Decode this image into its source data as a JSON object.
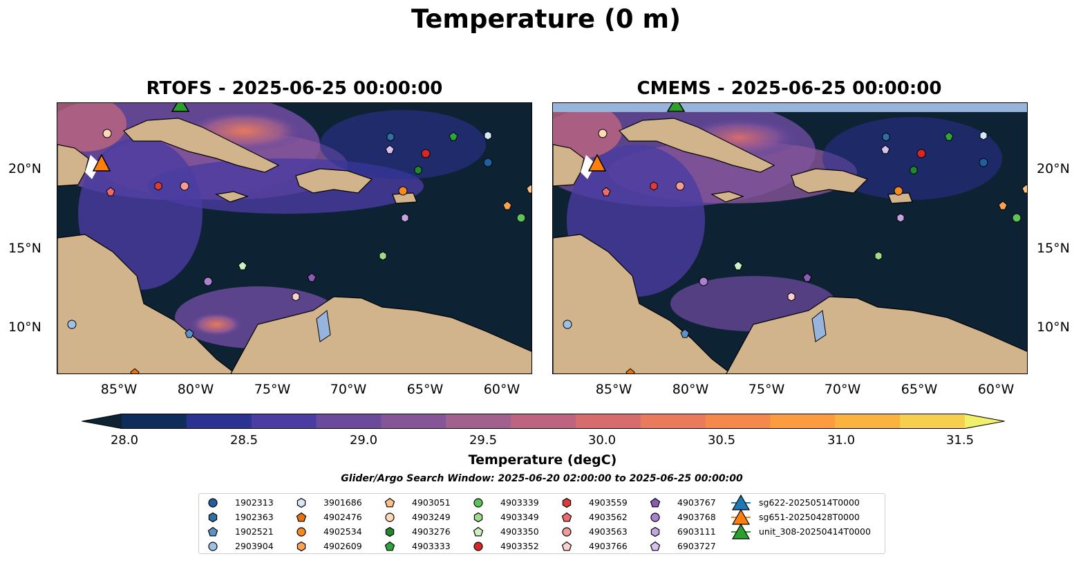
{
  "title": "Temperature (0 m)",
  "panels": [
    {
      "title": "RTOFS - 2025-06-25 00:00:00"
    },
    {
      "title": "CMEMS - 2025-06-25 00:00:00"
    }
  ],
  "axes": {
    "lon_labels": [
      "85°W",
      "80°W",
      "75°W",
      "70°W",
      "65°W",
      "60°W"
    ],
    "lat_labels": [
      "20°N",
      "15°N",
      "10°N"
    ]
  },
  "colorbar": {
    "label": "Temperature (degC)",
    "ticks": [
      "28.0",
      "28.5",
      "29.0",
      "29.5",
      "30.0",
      "30.5",
      "31.0",
      "31.5"
    ],
    "range": [
      28.0,
      31.5
    ],
    "extend": "both",
    "colors": [
      "#0d2233",
      "#0f2d5a",
      "#2b3291",
      "#4a3ca1",
      "#6b4a9c",
      "#865598",
      "#a2608e",
      "#bd6580",
      "#d66c6e",
      "#e97a5b",
      "#f5894b",
      "#fa9c3f",
      "#fbb33f",
      "#f7cf4e",
      "#f0f06a"
    ]
  },
  "search_window": "Glider/Argo Search Window: 2025-06-20 02:00:00 to 2025-06-25 00:00:00",
  "legend": [
    {
      "label": "1902313",
      "marker": "circle",
      "color": "#1f5fa0"
    },
    {
      "label": "1902363",
      "marker": "hexagon",
      "color": "#2e6fa8"
    },
    {
      "label": "1902521",
      "marker": "pentagon",
      "color": "#5b93c8"
    },
    {
      "label": "2903904",
      "marker": "circle",
      "color": "#9cc3e6"
    },
    {
      "label": "3901686",
      "marker": "hexagon",
      "color": "#d6e7f7"
    },
    {
      "label": "4902476",
      "marker": "pentagon",
      "color": "#e8730e"
    },
    {
      "label": "4902534",
      "marker": "circle",
      "color": "#f58a22"
    },
    {
      "label": "4902609",
      "marker": "hexagon",
      "color": "#f9a252"
    },
    {
      "label": "4903051",
      "marker": "pentagon",
      "color": "#fbbf85"
    },
    {
      "label": "4903249",
      "marker": "circle",
      "color": "#fdd9b8"
    },
    {
      "label": "4903276",
      "marker": "hexagon",
      "color": "#1e8a2c"
    },
    {
      "label": "4903333",
      "marker": "pentagon",
      "color": "#2ca53a"
    },
    {
      "label": "4903339",
      "marker": "circle",
      "color": "#5cc45a"
    },
    {
      "label": "4903349",
      "marker": "hexagon",
      "color": "#9ddc8e"
    },
    {
      "label": "4903350",
      "marker": "pentagon",
      "color": "#cdf1c0"
    },
    {
      "label": "4903352",
      "marker": "circle",
      "color": "#d62728"
    },
    {
      "label": "4903559",
      "marker": "hexagon",
      "color": "#de3b3b"
    },
    {
      "label": "4903562",
      "marker": "pentagon",
      "color": "#ee6b6b"
    },
    {
      "label": "4903563",
      "marker": "circle",
      "color": "#f49a97"
    },
    {
      "label": "4903766",
      "marker": "pentagon",
      "color": "#fbd0cd"
    },
    {
      "label": "4903767",
      "marker": "pentagon",
      "color": "#8a5cb8"
    },
    {
      "label": "4903768",
      "marker": "circle",
      "color": "#a981d0"
    },
    {
      "label": "6903111",
      "marker": "hexagon",
      "color": "#c3a6e0"
    },
    {
      "label": "6903727",
      "marker": "pentagon",
      "color": "#d6c2ee"
    },
    {
      "label": "sg622-20250514T0000",
      "marker": "triangle",
      "color": "#1f77b4"
    },
    {
      "label": "sg651-20250428T0000",
      "marker": "triangle",
      "color": "#ff7f0e"
    },
    {
      "label": "unit_308-20250414T0000",
      "marker": "triangle",
      "color": "#2ca02c"
    }
  ]
}
